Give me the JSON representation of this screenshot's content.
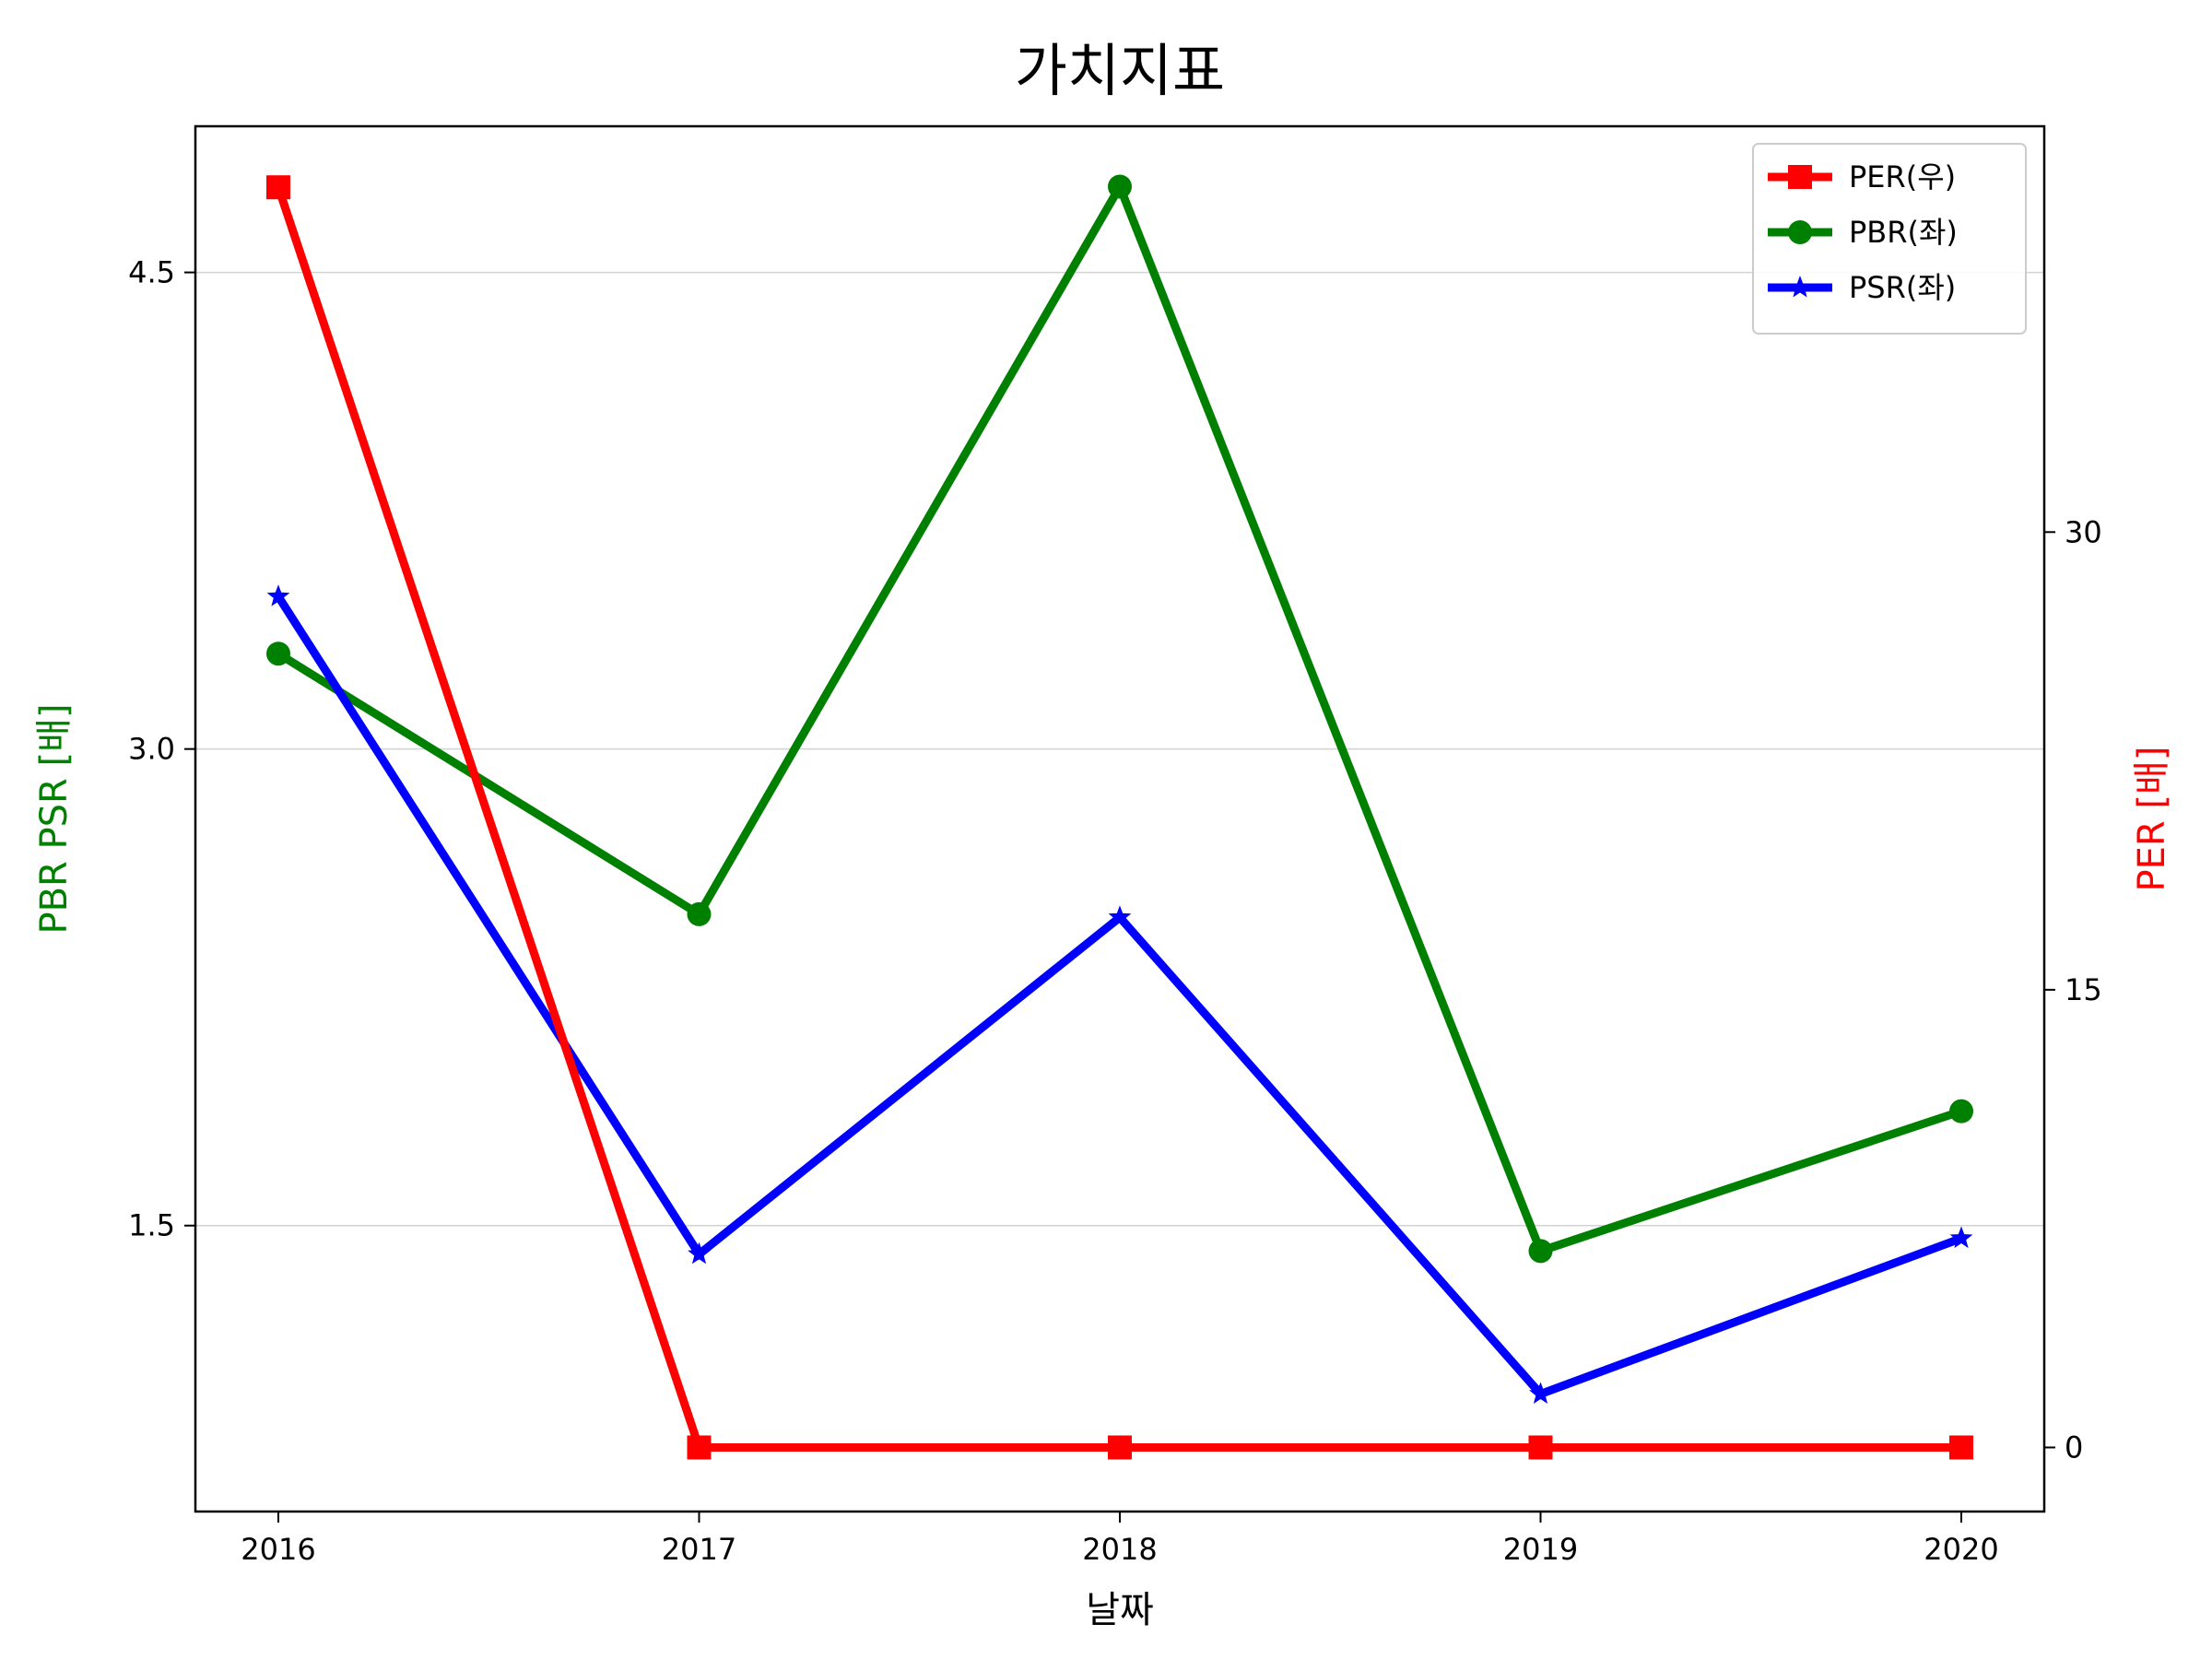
{
  "chart_data": {
    "type": "line",
    "title": "가치지표",
    "xlabel": "날짜",
    "ylabel_left": "PBR PSR [배]",
    "ylabel_right": "PER [배]",
    "ylabel_left_color": "#008000",
    "ylabel_right_color": "#ff0000",
    "categories": [
      "2016",
      "2017",
      "2018",
      "2019",
      "2020"
    ],
    "left_axis": {
      "ylim": [
        0.6,
        4.96
      ],
      "ticks": [
        1.5,
        3.0,
        4.5
      ],
      "tick_labels": [
        "1.5",
        "3.0",
        "4.5"
      ],
      "grid": true
    },
    "right_axis": {
      "ylim": [
        -2.1,
        43.3
      ],
      "ticks": [
        0,
        15,
        30
      ],
      "tick_labels": [
        "0",
        "15",
        "30"
      ]
    },
    "legend_position": "top-right",
    "series": [
      {
        "name": "PER(우)",
        "axis": "right",
        "color": "#ff0000",
        "marker": "square",
        "values": [
          41.3,
          0,
          0,
          0,
          0
        ]
      },
      {
        "name": "PBR(좌)",
        "axis": "left",
        "color": "#008000",
        "marker": "circle",
        "values": [
          3.3,
          2.48,
          4.77,
          1.42,
          1.86
        ]
      },
      {
        "name": "PSR(좌)",
        "axis": "left",
        "color": "#0000ff",
        "marker": "star",
        "values": [
          3.48,
          1.41,
          2.47,
          0.97,
          1.46
        ]
      }
    ]
  }
}
